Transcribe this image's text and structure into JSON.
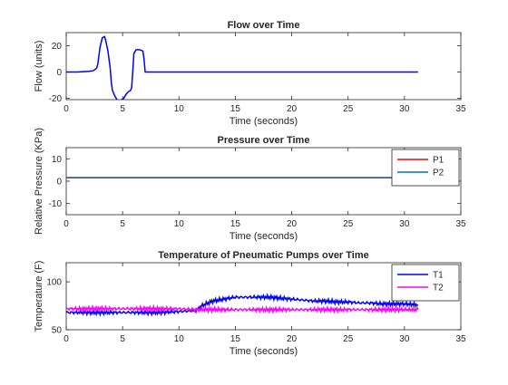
{
  "figure": {
    "background": "#ffffff"
  },
  "chart_data": [
    {
      "type": "line",
      "title": "Flow over Time",
      "xlabel": "Time (seconds)",
      "ylabel": "Flow (units)",
      "xlim": [
        0,
        35
      ],
      "ylim": [
        -21,
        30
      ],
      "xticks": [
        0,
        5,
        10,
        15,
        20,
        25,
        30,
        35
      ],
      "yticks": [
        -20,
        0,
        20
      ],
      "grid": false,
      "legend": null,
      "series": [
        {
          "color": "#0000ff",
          "x": [
            0,
            1,
            2,
            2.4,
            2.7,
            2.8,
            3.0,
            3.2,
            3.4,
            3.5,
            3.7,
            3.9,
            4.0,
            4.1,
            4.3,
            4.5,
            4.7,
            4.9,
            5.1,
            5.3,
            5.5,
            5.7,
            5.8,
            5.9,
            6.0,
            6.2,
            6.5,
            6.8,
            6.9,
            7.0,
            7.2,
            10,
            15,
            20,
            25,
            30,
            31.2
          ],
          "y": [
            0,
            0,
            0.5,
            1,
            3,
            6,
            19,
            26,
            27,
            24,
            16,
            3,
            -8,
            -14,
            -18,
            -21,
            -22,
            -21,
            -20,
            -17,
            -15,
            -14,
            -12,
            0,
            14,
            17,
            17,
            16,
            10,
            0,
            0,
            0,
            0,
            0,
            0,
            0,
            0
          ]
        }
      ]
    },
    {
      "type": "line",
      "title": "Pressure over Time",
      "xlabel": "Time (seconds)",
      "ylabel": "Relative Pressure (KPa)",
      "xlim": [
        0,
        35
      ],
      "ylim": [
        -15,
        15
      ],
      "xticks": [
        0,
        5,
        10,
        15,
        20,
        25,
        30,
        35
      ],
      "yticks": [
        -10,
        0,
        10
      ],
      "grid": false,
      "legend": "top-right",
      "series": [
        {
          "name": "P1",
          "color": "#ff0000",
          "x": [
            0,
            31.2
          ],
          "y": [
            1.5,
            1.5
          ]
        },
        {
          "name": "P2",
          "color": "#0072bd",
          "x": [
            0,
            31.2
          ],
          "y": [
            1.6,
            1.6
          ]
        }
      ]
    },
    {
      "type": "line",
      "title": "Temperature of Pneumatic Pumps over Time",
      "xlabel": "Time (seconds)",
      "ylabel": "Temperature (F)",
      "xlim": [
        0,
        35
      ],
      "ylim": [
        50,
        120
      ],
      "xticks": [
        0,
        5,
        10,
        15,
        20,
        25,
        30,
        35
      ],
      "yticks": [
        50,
        100
      ],
      "grid": false,
      "legend": "top-right",
      "series": [
        {
          "name": "T1",
          "color": "#0000ff",
          "x": [
            0,
            2,
            4,
            6,
            8,
            10,
            11.5,
            12,
            13,
            14,
            15,
            16,
            17,
            18,
            19,
            20,
            21,
            22,
            23,
            24,
            25,
            26,
            27,
            28,
            29,
            30,
            31.2
          ],
          "y": [
            68,
            68,
            68,
            68,
            68,
            69,
            70,
            75,
            80,
            82,
            84,
            84,
            84,
            84,
            83,
            82,
            81,
            80,
            80,
            79,
            79,
            78,
            78,
            77,
            77,
            77,
            76
          ]
        },
        {
          "name": "T2",
          "color": "#ff00ff",
          "x": [
            0,
            2,
            4,
            6,
            8,
            10,
            11.5,
            12,
            14,
            16,
            18,
            20,
            22,
            24,
            26,
            28,
            30,
            31.2
          ],
          "y": [
            72,
            72,
            72,
            72,
            72,
            72,
            71,
            71,
            71,
            71,
            71,
            71,
            71,
            71,
            71,
            71,
            71,
            71
          ]
        }
      ]
    }
  ]
}
